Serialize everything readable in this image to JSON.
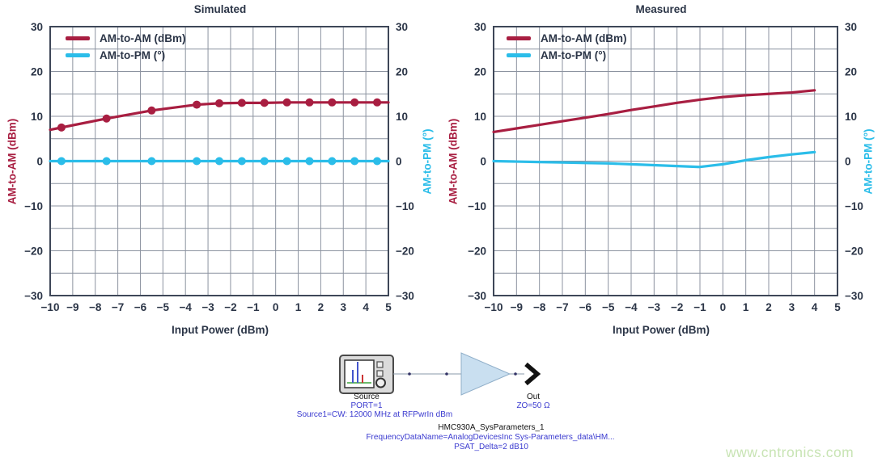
{
  "colors": {
    "am_to_am": "#A81E41",
    "am_to_pm": "#2BBDE9",
    "text_dark": "#2B3547",
    "grid": "#8C93A0",
    "frame": "#3E4758",
    "schematic_blue": "#3A3ACF",
    "amplifier_fill": "#C9DFF0",
    "watermark_green": "#C8E4B4"
  },
  "chart_data": [
    {
      "type": "line",
      "title": "Simulated",
      "xlabel": "Input Power (dBm)",
      "y_left_label": "AM-to-AM (dBm)",
      "y_right_label": "AM-to-PM (°)",
      "xlim": [
        -10,
        5
      ],
      "ylim": [
        -30,
        30
      ],
      "x_ticks": [
        -10,
        -9,
        -8,
        -7,
        -6,
        -5,
        -4,
        -3,
        -2,
        -1,
        0,
        1,
        2,
        3,
        4,
        5
      ],
      "y_ticks": [
        30,
        20,
        10,
        0,
        -10,
        -20,
        -30
      ],
      "grid": true,
      "legend_position": "top-left",
      "series": [
        {
          "name": "AM-to-AM (dBm)",
          "color": "#A81E41",
          "x": [
            -10,
            -9.5,
            -7.5,
            -5.5,
            -3.5,
            -2.5,
            -1.5,
            -0.5,
            0.5,
            1.5,
            2.5,
            3.5,
            4.5,
            5
          ],
          "y": [
            7.0,
            7.5,
            9.5,
            11.3,
            12.6,
            12.9,
            13.0,
            13.0,
            13.1,
            13.1,
            13.1,
            13.1,
            13.1,
            13.1
          ],
          "marker_x": [
            -9.5,
            -7.5,
            -5.5,
            -3.5,
            -2.5,
            -1.5,
            -0.5,
            0.5,
            1.5,
            2.5,
            3.5,
            4.5
          ],
          "marker_y": [
            7.5,
            9.5,
            11.3,
            12.6,
            12.9,
            13.0,
            13.0,
            13.1,
            13.1,
            13.1,
            13.1,
            13.1
          ]
        },
        {
          "name": "AM-to-PM (°)",
          "color": "#2BBDE9",
          "x": [
            -10,
            -9.5,
            -7.5,
            -5.5,
            -3.5,
            -2.5,
            -1.5,
            -0.5,
            0.5,
            1.5,
            2.5,
            3.5,
            4.5,
            5
          ],
          "y": [
            0,
            0,
            0,
            0,
            0,
            0,
            0,
            0,
            0,
            0,
            0,
            0,
            0,
            0
          ],
          "marker_x": [
            -9.5,
            -7.5,
            -5.5,
            -3.5,
            -2.5,
            -1.5,
            -0.5,
            0.5,
            1.5,
            2.5,
            3.5,
            4.5
          ],
          "marker_y": [
            0,
            0,
            0,
            0,
            0,
            0,
            0,
            0,
            0,
            0,
            0,
            0
          ]
        }
      ]
    },
    {
      "type": "line",
      "title": "Measured",
      "xlabel": "Input Power (dBm)",
      "y_left_label": "AM-to-AM (dBm)",
      "y_right_label": "AM-to-PM (°)",
      "xlim": [
        -10,
        5
      ],
      "ylim": [
        -30,
        30
      ],
      "x_ticks": [
        -10,
        -9,
        -8,
        -7,
        -6,
        -5,
        -4,
        -3,
        -2,
        -1,
        0,
        1,
        2,
        3,
        4,
        5
      ],
      "y_ticks": [
        30,
        20,
        10,
        0,
        -10,
        -20,
        -30
      ],
      "grid": true,
      "legend_position": "top-left",
      "series": [
        {
          "name": "AM-to-AM (dBm)",
          "color": "#A81E41",
          "x": [
            -10,
            -9,
            -8,
            -7,
            -6,
            -5,
            -4,
            -3,
            -2,
            -1,
            0,
            1,
            2,
            3,
            4
          ],
          "y": [
            6.5,
            7.3,
            8.1,
            8.9,
            9.7,
            10.5,
            11.4,
            12.2,
            13.0,
            13.7,
            14.3,
            14.7,
            15.0,
            15.3,
            15.8
          ],
          "marker_x": [],
          "marker_y": []
        },
        {
          "name": "AM-to-PM (°)",
          "color": "#2BBDE9",
          "x": [
            -10,
            -9,
            -8,
            -7,
            -6,
            -5,
            -4,
            -3,
            -2,
            -1,
            0,
            1,
            2,
            3,
            4
          ],
          "y": [
            0,
            -0.1,
            -0.2,
            -0.3,
            -0.4,
            -0.5,
            -0.7,
            -0.9,
            -1.1,
            -1.3,
            -0.7,
            0.2,
            0.9,
            1.5,
            2.0
          ],
          "marker_x": [],
          "marker_y": []
        }
      ]
    }
  ],
  "schematic": {
    "source_label": "Source",
    "source_port": "PORT=1",
    "source_config": "Source1=CW: 12000 MHz at RFPwrIn dBm",
    "amplifier_name": "HMC930A_SysParameters_1",
    "amplifier_frequency_data": "FrequencyDataName=AnalogDevicesInc Sys-Parameters_data\\HM...",
    "amplifier_psat": "PSAT_Delta=2 dB10",
    "out_label": "Out",
    "out_impedance": "ZO=50 Ω"
  },
  "watermark": "www.cntronics.com"
}
